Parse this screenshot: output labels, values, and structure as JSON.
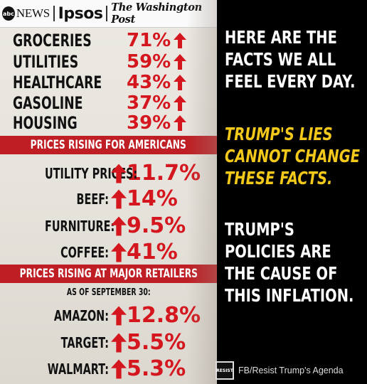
{
  "header": {
    "abc_logo": "abc",
    "abc_news": "NEWS",
    "ipsos": "Ipsos",
    "wapo": "The Washington Post"
  },
  "categories": [
    {
      "label": "GROCERIES",
      "value": "71%"
    },
    {
      "label": "UTILITIES",
      "value": "59%"
    },
    {
      "label": "HEALTHCARE",
      "value": "43%"
    },
    {
      "label": "GASOLINE",
      "value": "37%"
    },
    {
      "label": "HOUSING",
      "value": "39%"
    }
  ],
  "section1_title": "PRICES RISING FOR AMERICANS",
  "prices": [
    {
      "label": "UTILITY PRICES:",
      "value": "11.7%"
    },
    {
      "label": "BEEF:",
      "value": "14%"
    },
    {
      "label": "FURNITURE:",
      "value": "9.5%"
    },
    {
      "label": "COFFEE:",
      "value": "41%"
    }
  ],
  "section2_title": "PRICES RISING AT MAJOR RETAILERS",
  "as_of": "AS OF SEPTEMBER 30:",
  "retailers": [
    {
      "label": "AMAZON:",
      "value": "12.8%"
    },
    {
      "label": "TARGET:",
      "value": "5.5%"
    },
    {
      "label": "WALMART:",
      "value": "5.3%"
    }
  ],
  "right": {
    "block1": [
      "HERE ARE THE",
      "FACTS WE ALL",
      "FEEL EVERY DAY."
    ],
    "block2": [
      "TRUMP'S LIES",
      "CANNOT CHANGE",
      "THESE FACTS."
    ],
    "block3": [
      "TRUMP'S",
      "POLICIES ARE",
      "THE CAUSE OF",
      "THIS INFLATION."
    ]
  },
  "footer": {
    "patch": "RESIST",
    "text": "FB/Resist Trump's Agenda"
  },
  "colors": {
    "accent_red": "#d4171e",
    "bar_red": "#bf1e24",
    "highlight_yellow": "#f2c81a",
    "background": "#000000"
  },
  "icons": [
    "up-arrow-icon"
  ]
}
